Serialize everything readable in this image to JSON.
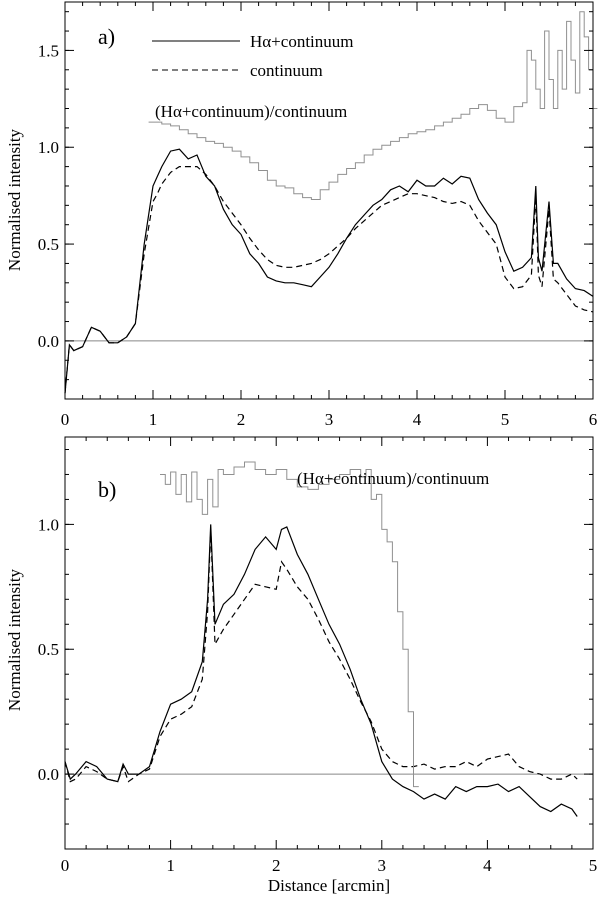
{
  "chart_data": [
    {
      "type": "line",
      "panel_label": "a)",
      "xlim": [
        0,
        6
      ],
      "ylim": [
        -0.3,
        1.75
      ],
      "xticks": [
        "0",
        "1",
        "2",
        "3",
        "4",
        "5",
        "6"
      ],
      "yticks": [
        "0.0",
        "0.5",
        "1.0",
        "1.5"
      ],
      "ylabel": "Normalised intensity",
      "xlabel": "",
      "annotation": "(Hα+continuum)/continuum",
      "legend": {
        "position": "top-center",
        "entries": [
          "Hα+continuum",
          "continuum"
        ]
      },
      "series": [
        {
          "name": "Hα+continuum",
          "style": "solid",
          "color": "#000000",
          "x": [
            0,
            0.05,
            0.1,
            0.2,
            0.3,
            0.4,
            0.5,
            0.6,
            0.7,
            0.8,
            0.9,
            1.0,
            1.05,
            1.1,
            1.2,
            1.3,
            1.4,
            1.5,
            1.6,
            1.7,
            1.8,
            1.9,
            2.0,
            2.1,
            2.2,
            2.3,
            2.4,
            2.5,
            2.6,
            2.7,
            2.8,
            2.9,
            3.0,
            3.1,
            3.2,
            3.3,
            3.4,
            3.5,
            3.6,
            3.7,
            3.8,
            3.9,
            4.0,
            4.1,
            4.2,
            4.3,
            4.4,
            4.5,
            4.6,
            4.7,
            4.8,
            4.9,
            5.0,
            5.1,
            5.2,
            5.3,
            5.35,
            5.38,
            5.42,
            5.5,
            5.55,
            5.6,
            5.7,
            5.8,
            5.9,
            6.0
          ],
          "y": [
            -0.27,
            -0.02,
            -0.05,
            -0.03,
            0.07,
            0.05,
            -0.01,
            -0.01,
            0.02,
            0.09,
            0.5,
            0.8,
            0.85,
            0.9,
            0.98,
            0.99,
            0.94,
            0.96,
            0.85,
            0.8,
            0.68,
            0.6,
            0.55,
            0.45,
            0.4,
            0.33,
            0.31,
            0.3,
            0.3,
            0.29,
            0.28,
            0.33,
            0.38,
            0.45,
            0.53,
            0.6,
            0.65,
            0.7,
            0.73,
            0.78,
            0.8,
            0.77,
            0.83,
            0.8,
            0.8,
            0.84,
            0.81,
            0.85,
            0.84,
            0.73,
            0.66,
            0.6,
            0.46,
            0.36,
            0.38,
            0.43,
            0.8,
            0.43,
            0.36,
            0.72,
            0.4,
            0.4,
            0.32,
            0.27,
            0.26,
            0.23
          ]
        },
        {
          "name": "continuum",
          "style": "dashed",
          "color": "#000000",
          "x": [
            0,
            0.05,
            0.1,
            0.2,
            0.3,
            0.4,
            0.5,
            0.6,
            0.7,
            0.8,
            0.9,
            1.0,
            1.05,
            1.1,
            1.2,
            1.3,
            1.4,
            1.5,
            1.6,
            1.7,
            1.8,
            1.9,
            2.0,
            2.1,
            2.2,
            2.3,
            2.4,
            2.5,
            2.6,
            2.7,
            2.8,
            2.9,
            3.0,
            3.1,
            3.2,
            3.3,
            3.4,
            3.5,
            3.6,
            3.7,
            3.8,
            3.9,
            4.0,
            4.1,
            4.2,
            4.3,
            4.4,
            4.5,
            4.6,
            4.7,
            4.8,
            4.9,
            5.0,
            5.1,
            5.2,
            5.3,
            5.35,
            5.38,
            5.42,
            5.5,
            5.55,
            5.6,
            5.7,
            5.8,
            5.9,
            6.0
          ],
          "y": [
            -0.27,
            -0.02,
            -0.05,
            -0.03,
            0.07,
            0.05,
            -0.01,
            -0.01,
            0.02,
            0.09,
            0.45,
            0.72,
            0.76,
            0.81,
            0.87,
            0.9,
            0.9,
            0.9,
            0.86,
            0.8,
            0.72,
            0.66,
            0.6,
            0.53,
            0.47,
            0.42,
            0.39,
            0.38,
            0.38,
            0.39,
            0.4,
            0.42,
            0.45,
            0.49,
            0.53,
            0.58,
            0.62,
            0.66,
            0.7,
            0.72,
            0.74,
            0.76,
            0.76,
            0.75,
            0.74,
            0.72,
            0.71,
            0.72,
            0.7,
            0.62,
            0.56,
            0.5,
            0.33,
            0.27,
            0.28,
            0.34,
            0.75,
            0.34,
            0.28,
            0.68,
            0.32,
            0.3,
            0.24,
            0.18,
            0.16,
            0.15
          ]
        },
        {
          "name": "",
          "style": "step",
          "color": "#909090",
          "x": [
            0.95,
            1.1,
            1.2,
            1.3,
            1.4,
            1.5,
            1.6,
            1.7,
            1.8,
            1.9,
            2.0,
            2.1,
            2.2,
            2.3,
            2.4,
            2.5,
            2.6,
            2.7,
            2.8,
            2.9,
            3.0,
            3.1,
            3.2,
            3.3,
            3.4,
            3.5,
            3.6,
            3.7,
            3.8,
            3.9,
            4.0,
            4.1,
            4.2,
            4.3,
            4.4,
            4.5,
            4.6,
            4.7,
            4.8,
            4.9,
            5.0,
            5.1,
            5.2,
            5.25,
            5.3,
            5.35,
            5.4,
            5.45,
            5.5,
            5.55,
            5.6,
            5.65,
            5.7,
            5.75,
            5.8,
            5.85,
            5.9,
            5.95,
            6.0
          ],
          "y": [
            1.13,
            1.12,
            1.11,
            1.09,
            1.07,
            1.05,
            1.03,
            1.02,
            1.0,
            0.98,
            0.95,
            0.92,
            0.88,
            0.83,
            0.8,
            0.79,
            0.76,
            0.74,
            0.73,
            0.78,
            0.82,
            0.86,
            0.89,
            0.92,
            0.96,
            0.99,
            1.01,
            1.03,
            1.05,
            1.07,
            1.08,
            1.09,
            1.11,
            1.13,
            1.15,
            1.17,
            1.2,
            1.22,
            1.19,
            1.15,
            1.13,
            1.21,
            1.23,
            1.5,
            1.45,
            1.3,
            1.2,
            1.6,
            1.35,
            1.2,
            1.5,
            1.3,
            1.65,
            1.45,
            1.28,
            1.7,
            1.57,
            1.4,
            1.2
          ]
        }
      ]
    },
    {
      "type": "line",
      "panel_label": "b)",
      "xlim": [
        0,
        5
      ],
      "ylim": [
        -0.3,
        1.35
      ],
      "xticks": [
        "0",
        "1",
        "2",
        "3",
        "4",
        "5"
      ],
      "yticks": [
        "0.0",
        "0.5",
        "1.0"
      ],
      "ylabel": "Normalised intensity",
      "xlabel": "Distance [arcmin]",
      "annotation": "(Hα+continuum)/continuum",
      "series": [
        {
          "name": "Hα+continuum",
          "style": "solid",
          "color": "#000000",
          "x": [
            0,
            0.05,
            0.1,
            0.2,
            0.3,
            0.4,
            0.5,
            0.55,
            0.6,
            0.7,
            0.8,
            0.9,
            1.0,
            1.1,
            1.2,
            1.3,
            1.35,
            1.38,
            1.42,
            1.5,
            1.6,
            1.7,
            1.8,
            1.9,
            2.0,
            2.05,
            2.1,
            2.2,
            2.3,
            2.4,
            2.5,
            2.6,
            2.7,
            2.8,
            2.9,
            3.0,
            3.1,
            3.2,
            3.3,
            3.4,
            3.5,
            3.6,
            3.7,
            3.8,
            3.9,
            4.0,
            4.1,
            4.2,
            4.3,
            4.4,
            4.5,
            4.6,
            4.7,
            4.8,
            4.85
          ],
          "y": [
            0.05,
            -0.02,
            0.0,
            0.05,
            0.03,
            -0.02,
            -0.03,
            0.04,
            0.0,
            0.0,
            0.03,
            0.17,
            0.28,
            0.3,
            0.33,
            0.45,
            0.7,
            1.0,
            0.6,
            0.68,
            0.72,
            0.8,
            0.9,
            0.95,
            0.9,
            0.98,
            0.99,
            0.88,
            0.8,
            0.7,
            0.6,
            0.52,
            0.42,
            0.3,
            0.2,
            0.05,
            -0.02,
            -0.05,
            -0.07,
            -0.1,
            -0.08,
            -0.1,
            -0.05,
            -0.07,
            -0.05,
            -0.05,
            -0.04,
            -0.07,
            -0.05,
            -0.09,
            -0.13,
            -0.15,
            -0.12,
            -0.14,
            -0.17
          ]
        },
        {
          "name": "continuum",
          "style": "dashed",
          "color": "#000000",
          "x": [
            0,
            0.05,
            0.1,
            0.2,
            0.3,
            0.4,
            0.5,
            0.55,
            0.6,
            0.7,
            0.8,
            0.9,
            1.0,
            1.1,
            1.2,
            1.3,
            1.35,
            1.38,
            1.42,
            1.5,
            1.6,
            1.7,
            1.8,
            1.9,
            2.0,
            2.05,
            2.1,
            2.2,
            2.3,
            2.4,
            2.5,
            2.6,
            2.7,
            2.8,
            2.9,
            3.0,
            3.1,
            3.2,
            3.3,
            3.4,
            3.5,
            3.6,
            3.7,
            3.8,
            3.9,
            4.0,
            4.1,
            4.2,
            4.3,
            4.4,
            4.5,
            4.6,
            4.7,
            4.8,
            4.85
          ],
          "y": [
            0.05,
            -0.03,
            -0.02,
            0.03,
            0.01,
            -0.02,
            -0.03,
            0.03,
            -0.03,
            0.0,
            0.02,
            0.15,
            0.22,
            0.24,
            0.27,
            0.38,
            0.65,
            0.98,
            0.52,
            0.58,
            0.64,
            0.7,
            0.76,
            0.75,
            0.74,
            0.85,
            0.82,
            0.75,
            0.7,
            0.62,
            0.53,
            0.46,
            0.38,
            0.29,
            0.21,
            0.1,
            0.05,
            0.03,
            0.03,
            0.04,
            0.02,
            0.03,
            0.03,
            0.05,
            0.03,
            0.06,
            0.07,
            0.08,
            0.03,
            0.01,
            0.0,
            -0.02,
            -0.02,
            0.0,
            -0.02
          ]
        },
        {
          "name": "",
          "style": "step",
          "color": "#909090",
          "x": [
            0.9,
            0.95,
            1.0,
            1.05,
            1.1,
            1.15,
            1.2,
            1.25,
            1.3,
            1.35,
            1.4,
            1.45,
            1.5,
            1.6,
            1.7,
            1.8,
            1.9,
            2.0,
            2.1,
            2.2,
            2.3,
            2.4,
            2.5,
            2.6,
            2.7,
            2.8,
            2.85,
            2.9,
            2.95,
            3.0,
            3.05,
            3.1,
            3.15,
            3.2,
            3.25,
            3.3
          ],
          "y": [
            1.2,
            1.16,
            1.21,
            1.12,
            1.2,
            1.09,
            1.21,
            1.1,
            1.04,
            1.18,
            1.07,
            1.22,
            1.2,
            1.23,
            1.25,
            1.22,
            1.2,
            1.22,
            1.18,
            1.15,
            1.14,
            1.16,
            1.18,
            1.2,
            1.22,
            1.19,
            1.22,
            1.1,
            1.12,
            0.98,
            0.93,
            0.85,
            0.65,
            0.5,
            0.25,
            -0.05
          ]
        }
      ]
    }
  ]
}
